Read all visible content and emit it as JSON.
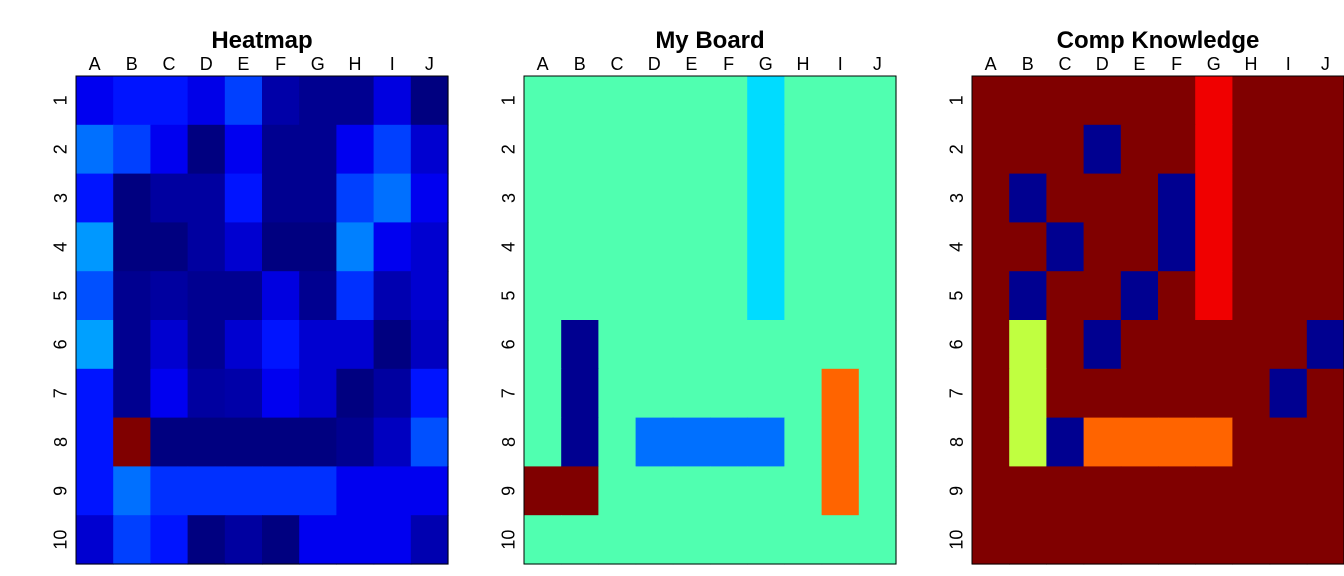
{
  "chart_data": [
    {
      "type": "heatmap",
      "title": "Heatmap",
      "x_labels": [
        "A",
        "B",
        "C",
        "D",
        "E",
        "F",
        "G",
        "H",
        "I",
        "J"
      ],
      "y_labels": [
        "1",
        "2",
        "3",
        "4",
        "5",
        "6",
        "7",
        "8",
        "9",
        "10"
      ],
      "x_axis_position": "top",
      "grid": false,
      "colors": [
        [
          "#0000f0",
          "#0014ff",
          "#0014ff",
          "#0000e8",
          "#0040ff",
          "#0000a8",
          "#000090",
          "#000090",
          "#0000e0",
          "#000080"
        ],
        [
          "#0070ff",
          "#0040ff",
          "#0000f0",
          "#000080",
          "#0000f0",
          "#000090",
          "#000090",
          "#0000f0",
          "#0040ff",
          "#0000d0"
        ],
        [
          "#0014ff",
          "#000080",
          "#0000a0",
          "#0000a0",
          "#0014ff",
          "#000090",
          "#000090",
          "#0040ff",
          "#0070ff",
          "#0000f0"
        ],
        [
          "#0098ff",
          "#000080",
          "#000080",
          "#0000a0",
          "#0000d0",
          "#000080",
          "#000080",
          "#0080ff",
          "#0000f0",
          "#0000d0"
        ],
        [
          "#0050ff",
          "#000090",
          "#0000a0",
          "#000090",
          "#000090",
          "#0000e0",
          "#000090",
          "#0030ff",
          "#0000b0",
          "#0000d0"
        ],
        [
          "#00a0ff",
          "#000090",
          "#0000d0",
          "#000090",
          "#0000d0",
          "#0014ff",
          "#0000d0",
          "#0000d0",
          "#000080",
          "#0000c0"
        ],
        [
          "#0014ff",
          "#000090",
          "#0000f0",
          "#0000a0",
          "#0000a8",
          "#0000f0",
          "#0000d0",
          "#000080",
          "#0000a0",
          "#0014ff"
        ],
        [
          "#0014ff",
          "#800000",
          "#000080",
          "#000080",
          "#000080",
          "#000080",
          "#000080",
          "#000090",
          "#0000c0",
          "#0050ff"
        ],
        [
          "#0014ff",
          "#0070ff",
          "#0030ff",
          "#0030ff",
          "#0030ff",
          "#0030ff",
          "#0030ff",
          "#0000f0",
          "#0000f0",
          "#0000f0"
        ],
        [
          "#0000d0",
          "#0040ff",
          "#0014ff",
          "#000080",
          "#0000a0",
          "#000080",
          "#0000f0",
          "#0000f0",
          "#0000f0",
          "#0000b0"
        ]
      ]
    },
    {
      "type": "heatmap",
      "title": "My Board",
      "x_labels": [
        "A",
        "B",
        "C",
        "D",
        "E",
        "F",
        "G",
        "H",
        "I",
        "J"
      ],
      "y_labels": [
        "1",
        "2",
        "3",
        "4",
        "5",
        "6",
        "7",
        "8",
        "9",
        "10"
      ],
      "x_axis_position": "top",
      "grid": false,
      "colors": [
        [
          "#50ffb0",
          "#50ffb0",
          "#50ffb0",
          "#50ffb0",
          "#50ffb0",
          "#50ffb0",
          "#00dcff",
          "#50ffb0",
          "#50ffb0",
          "#50ffb0"
        ],
        [
          "#50ffb0",
          "#50ffb0",
          "#50ffb0",
          "#50ffb0",
          "#50ffb0",
          "#50ffb0",
          "#00dcff",
          "#50ffb0",
          "#50ffb0",
          "#50ffb0"
        ],
        [
          "#50ffb0",
          "#50ffb0",
          "#50ffb0",
          "#50ffb0",
          "#50ffb0",
          "#50ffb0",
          "#00dcff",
          "#50ffb0",
          "#50ffb0",
          "#50ffb0"
        ],
        [
          "#50ffb0",
          "#50ffb0",
          "#50ffb0",
          "#50ffb0",
          "#50ffb0",
          "#50ffb0",
          "#00dcff",
          "#50ffb0",
          "#50ffb0",
          "#50ffb0"
        ],
        [
          "#50ffb0",
          "#50ffb0",
          "#50ffb0",
          "#50ffb0",
          "#50ffb0",
          "#50ffb0",
          "#00dcff",
          "#50ffb0",
          "#50ffb0",
          "#50ffb0"
        ],
        [
          "#50ffb0",
          "#000090",
          "#50ffb0",
          "#50ffb0",
          "#50ffb0",
          "#50ffb0",
          "#50ffb0",
          "#50ffb0",
          "#50ffb0",
          "#50ffb0"
        ],
        [
          "#50ffb0",
          "#000090",
          "#50ffb0",
          "#50ffb0",
          "#50ffb0",
          "#50ffb0",
          "#50ffb0",
          "#50ffb0",
          "#ff6400",
          "#50ffb0"
        ],
        [
          "#50ffb0",
          "#000090",
          "#50ffb0",
          "#0070ff",
          "#0070ff",
          "#0070ff",
          "#0070ff",
          "#50ffb0",
          "#ff6400",
          "#50ffb0"
        ],
        [
          "#800000",
          "#800000",
          "#50ffb0",
          "#50ffb0",
          "#50ffb0",
          "#50ffb0",
          "#50ffb0",
          "#50ffb0",
          "#ff6400",
          "#50ffb0"
        ],
        [
          "#50ffb0",
          "#50ffb0",
          "#50ffb0",
          "#50ffb0",
          "#50ffb0",
          "#50ffb0",
          "#50ffb0",
          "#50ffb0",
          "#50ffb0",
          "#50ffb0"
        ]
      ]
    },
    {
      "type": "heatmap",
      "title": "Comp Knowledge",
      "x_labels": [
        "A",
        "B",
        "C",
        "D",
        "E",
        "F",
        "G",
        "H",
        "I",
        "J"
      ],
      "y_labels": [
        "1",
        "2",
        "3",
        "4",
        "5",
        "6",
        "7",
        "8",
        "9",
        "10"
      ],
      "x_axis_position": "top",
      "grid": false,
      "colors": [
        [
          "#800000",
          "#800000",
          "#800000",
          "#800000",
          "#800000",
          "#800000",
          "#f00000",
          "#800000",
          "#800000",
          "#800000"
        ],
        [
          "#800000",
          "#800000",
          "#800000",
          "#000090",
          "#800000",
          "#800000",
          "#f00000",
          "#800000",
          "#800000",
          "#800000"
        ],
        [
          "#800000",
          "#000090",
          "#800000",
          "#800000",
          "#800000",
          "#000090",
          "#f00000",
          "#800000",
          "#800000",
          "#800000"
        ],
        [
          "#800000",
          "#800000",
          "#000090",
          "#800000",
          "#800000",
          "#000090",
          "#f00000",
          "#800000",
          "#800000",
          "#800000"
        ],
        [
          "#800000",
          "#000090",
          "#800000",
          "#800000",
          "#000090",
          "#800000",
          "#f00000",
          "#800000",
          "#800000",
          "#800000"
        ],
        [
          "#800000",
          "#c0ff40",
          "#800000",
          "#000090",
          "#800000",
          "#800000",
          "#800000",
          "#800000",
          "#800000",
          "#000090"
        ],
        [
          "#800000",
          "#c0ff40",
          "#800000",
          "#800000",
          "#800000",
          "#800000",
          "#800000",
          "#800000",
          "#000090",
          "#800000"
        ],
        [
          "#800000",
          "#c0ff40",
          "#000090",
          "#ff6400",
          "#ff6400",
          "#ff6400",
          "#ff6400",
          "#800000",
          "#800000",
          "#800000"
        ],
        [
          "#800000",
          "#800000",
          "#800000",
          "#800000",
          "#800000",
          "#800000",
          "#800000",
          "#800000",
          "#800000",
          "#800000"
        ],
        [
          "#800000",
          "#800000",
          "#800000",
          "#800000",
          "#800000",
          "#800000",
          "#800000",
          "#800000",
          "#800000",
          "#800000"
        ]
      ]
    }
  ]
}
